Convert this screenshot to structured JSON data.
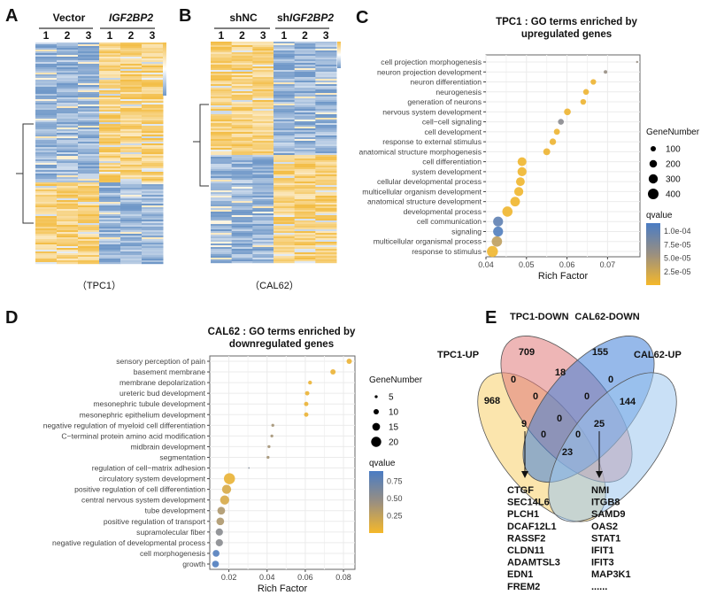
{
  "panels": {
    "A": "A",
    "B": "B",
    "C": "C",
    "D": "D",
    "E": "E"
  },
  "heatmap_A": {
    "groups": [
      "Vector",
      "IGF2BP2"
    ],
    "columns": [
      "1",
      "2",
      "3",
      "1",
      "2",
      "3"
    ],
    "caption": "（TPC1）"
  },
  "heatmap_B": {
    "groups": [
      "shNC",
      "shIGF2BP2"
    ],
    "group_prefix": "sh",
    "group_italic": "IGF2BP2",
    "columns": [
      "1",
      "2",
      "3",
      "1",
      "2",
      "3"
    ],
    "caption": "（CAL62）"
  },
  "colors": {
    "low": "#F5B82A",
    "mid": "#9A8F80",
    "high": "#4A7CC4",
    "highlight": "#E8827A",
    "heat_blue": "#7098C8",
    "heat_yellow": "#F3BE48"
  },
  "chart_data": [
    {
      "id": "C",
      "type": "scatter",
      "title": [
        "TPC1 : GO terms enriched by",
        "upregulated genes"
      ],
      "xlabel": "Rich Factor",
      "xlim": [
        0.04,
        0.078
      ],
      "xticks": [
        0.04,
        0.05,
        0.06,
        0.07
      ],
      "grid": true,
      "legend_placement": "right",
      "size_legend": {
        "title": "GeneNumber",
        "values": [
          100,
          200,
          300,
          400
        ]
      },
      "color_legend": {
        "title": "qvalue",
        "range": [
          0,
          0.000115
        ],
        "ticks": [
          0.0001,
          7.5e-05,
          5e-05,
          2.5e-05
        ],
        "tick_labels": [
          "1.0e-04",
          "7.5e-05",
          "5.0e-05",
          "2.5e-05"
        ]
      },
      "highlight": "cell differentiation",
      "points": [
        {
          "term": "cell projection morphogenesis",
          "x": 0.0773,
          "gene": 16,
          "q": 6e-05
        },
        {
          "term": "neuron projection development",
          "x": 0.0695,
          "gene": 45,
          "q": 6e-05
        },
        {
          "term": "neuron differentiation",
          "x": 0.0665,
          "gene": 110,
          "q": 5e-06
        },
        {
          "term": "neurogenesis",
          "x": 0.0647,
          "gene": 120,
          "q": 5e-06
        },
        {
          "term": "generation of neurons",
          "x": 0.064,
          "gene": 115,
          "q": 5e-06
        },
        {
          "term": "nervous system development",
          "x": 0.0601,
          "gene": 160,
          "q": 5e-06
        },
        {
          "term": "cell−cell signaling",
          "x": 0.0585,
          "gene": 120,
          "q": 7e-05
        },
        {
          "term": "cell development",
          "x": 0.0575,
          "gene": 130,
          "q": 5e-06
        },
        {
          "term": "response to external stimulus",
          "x": 0.0565,
          "gene": 150,
          "q": 5e-06
        },
        {
          "term": "anatomical structure morphogenesis",
          "x": 0.055,
          "gene": 170,
          "q": 5e-06
        },
        {
          "term": "cell differentiation",
          "x": 0.0489,
          "gene": 280,
          "q": 3e-06
        },
        {
          "term": "system development",
          "x": 0.0489,
          "gene": 290,
          "q": 3e-06
        },
        {
          "term": "cellular developmental process",
          "x": 0.0485,
          "gene": 270,
          "q": 3e-06
        },
        {
          "term": "multicellular organism development",
          "x": 0.0481,
          "gene": 290,
          "q": 3e-06
        },
        {
          "term": "anatomical structure development",
          "x": 0.0472,
          "gene": 330,
          "q": 3e-06
        },
        {
          "term": "developmental process",
          "x": 0.0453,
          "gene": 370,
          "q": 3e-06
        },
        {
          "term": "cell communication",
          "x": 0.043,
          "gene": 350,
          "q": 0.0001
        },
        {
          "term": "signaling",
          "x": 0.043,
          "gene": 350,
          "q": 0.00011
        },
        {
          "term": "multicellular organismal process",
          "x": 0.0427,
          "gene": 380,
          "q": 3.5e-05
        },
        {
          "term": "response to stimulus",
          "x": 0.0416,
          "gene": 430,
          "q": 3e-06
        }
      ]
    },
    {
      "id": "D",
      "type": "scatter",
      "title": [
        "CAL62 : GO terms enriched by",
        "downregulated genes"
      ],
      "xlabel": "Rich Factor",
      "xlim": [
        0.01,
        0.086
      ],
      "xticks": [
        0.02,
        0.04,
        0.06,
        0.08
      ],
      "grid": true,
      "legend_placement": "right",
      "size_legend": {
        "title": "GeneNumber",
        "values": [
          5,
          10,
          15,
          20
        ]
      },
      "color_legend": {
        "title": "qvalue",
        "range": [
          0,
          0.9
        ],
        "ticks": [
          0.75,
          0.5,
          0.25
        ],
        "tick_labels": [
          "0.75",
          "0.50",
          "0.25"
        ]
      },
      "highlight": "positive regulation of cell differentiation",
      "points": [
        {
          "term": "sensory perception of pain",
          "x": 0.083,
          "gene": 10,
          "q": 0.05
        },
        {
          "term": "basement membrane",
          "x": 0.0745,
          "gene": 10,
          "q": 0.05
        },
        {
          "term": "membrane depolarization",
          "x": 0.0625,
          "gene": 7,
          "q": 0.05
        },
        {
          "term": "ureteric bud development",
          "x": 0.061,
          "gene": 8,
          "q": 0.05
        },
        {
          "term": "mesonephric tubule development",
          "x": 0.0605,
          "gene": 8,
          "q": 0.05
        },
        {
          "term": "mesonephric epithelium development",
          "x": 0.0605,
          "gene": 8,
          "q": 0.05
        },
        {
          "term": "negative regulation of myeloid cell differentiation",
          "x": 0.043,
          "gene": 5,
          "q": 0.4
        },
        {
          "term": "C−terminal protein amino acid modification",
          "x": 0.0425,
          "gene": 5,
          "q": 0.4
        },
        {
          "term": "midbrain development",
          "x": 0.041,
          "gene": 5,
          "q": 0.4
        },
        {
          "term": "segmentation",
          "x": 0.0405,
          "gene": 5,
          "q": 0.4
        },
        {
          "term": "regulation of cell−matrix adhesion",
          "x": 0.0305,
          "gene": 2,
          "q": 0.6
        },
        {
          "term": "circulatory system development",
          "x": 0.0203,
          "gene": 22,
          "q": 0.06
        },
        {
          "term": "positive regulation of cell differentiation",
          "x": 0.0188,
          "gene": 18,
          "q": 0.15
        },
        {
          "term": "central nervous system development",
          "x": 0.0178,
          "gene": 18,
          "q": 0.15
        },
        {
          "term": "tube development",
          "x": 0.016,
          "gene": 15,
          "q": 0.35
        },
        {
          "term": "positive regulation of transport",
          "x": 0.0155,
          "gene": 15,
          "q": 0.35
        },
        {
          "term": "supramolecular fiber",
          "x": 0.015,
          "gene": 14,
          "q": 0.55
        },
        {
          "term": "negative regulation of developmental process",
          "x": 0.015,
          "gene": 14,
          "q": 0.55
        },
        {
          "term": "cell morphogenesis",
          "x": 0.0133,
          "gene": 13,
          "q": 0.85
        },
        {
          "term": "growth",
          "x": 0.013,
          "gene": 13,
          "q": 0.87
        }
      ]
    },
    {
      "id": "E",
      "type": "venn",
      "sets": [
        {
          "name": "TPC1-UP",
          "color": "#F7CF6A"
        },
        {
          "name": "TPC1-DOWN",
          "color": "#E07A7A"
        },
        {
          "name": "CAL62-DOWN",
          "color": "#3F7FD8"
        },
        {
          "name": "CAL62-UP",
          "color": "#9CC7EE"
        }
      ],
      "regions": [
        {
          "sets": [
            "TPC1-DOWN"
          ],
          "count": "709"
        },
        {
          "sets": [
            "CAL62-DOWN"
          ],
          "count": "155"
        },
        {
          "sets": [
            "TPC1-DOWN",
            "CAL62-DOWN"
          ],
          "count": "18"
        },
        {
          "sets": [
            "TPC1-UP",
            "TPC1-DOWN"
          ],
          "count": "0"
        },
        {
          "sets": [
            "CAL62-DOWN",
            "CAL62-UP"
          ],
          "count": "0"
        },
        {
          "sets": [
            "TPC1-UP"
          ],
          "count": "968"
        },
        {
          "sets": [
            "TPC1-UP",
            "TPC1-DOWN",
            "CAL62-DOWN"
          ],
          "count": "0"
        },
        {
          "sets": [
            "TPC1-DOWN",
            "CAL62-DOWN",
            "CAL62-UP"
          ],
          "count": "0"
        },
        {
          "sets": [
            "CAL62-UP"
          ],
          "count": "144"
        },
        {
          "sets": [
            "TPC1-UP",
            "CAL62-DOWN"
          ],
          "count": "9"
        },
        {
          "sets": [
            "TPC1-UP",
            "TPC1-DOWN",
            "CAL62-DOWN",
            "CAL62-UP"
          ],
          "count": "0"
        },
        {
          "sets": [
            "TPC1-DOWN",
            "CAL62-UP"
          ],
          "count": "25"
        },
        {
          "sets": [
            "TPC1-UP",
            "CAL62-DOWN",
            "CAL62-UP"
          ],
          "count": "0"
        },
        {
          "sets": [
            "TPC1-UP",
            "TPC1-DOWN",
            "CAL62-UP"
          ],
          "count": "0"
        },
        {
          "sets": [
            "TPC1-UP",
            "CAL62-UP"
          ],
          "count": "23"
        }
      ],
      "gene_lists": [
        {
          "region": "9",
          "genes": [
            "CTGF",
            "SEC14L6",
            "PLCH1",
            "DCAF12L1",
            "RASSF2",
            "CLDN11",
            "ADAMTSL3",
            "EDN1",
            "FREM2"
          ]
        },
        {
          "region": "25",
          "genes": [
            "NMI",
            "ITGB8",
            "SAMD9",
            "OAS2",
            "STAT1",
            "IFIT1",
            "IFIT3",
            "MAP3K1",
            "......"
          ]
        }
      ]
    }
  ]
}
